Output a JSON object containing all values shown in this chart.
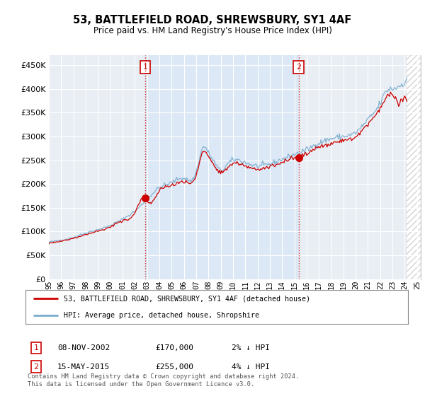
{
  "title": "53, BATTLEFIELD ROAD, SHREWSBURY, SY1 4AF",
  "subtitle": "Price paid vs. HM Land Registry's House Price Index (HPI)",
  "ylim": [
    0,
    470000
  ],
  "xlim_start": 1995.0,
  "xlim_end": 2025.3,
  "plot_bg_color_left": "#f0f4f8",
  "plot_bg_color_mid": "#dce8f5",
  "plot_bg_color_right": "#f0f4f8",
  "legend_line1": "53, BATTLEFIELD ROAD, SHREWSBURY, SY1 4AF (detached house)",
  "legend_line2": "HPI: Average price, detached house, Shropshire",
  "sale1_date": "08-NOV-2002",
  "sale1_price": "£170,000",
  "sale1_hpi": "2% ↓ HPI",
  "sale1_year": 2002.85,
  "sale1_value": 170000,
  "sale2_date": "15-MAY-2015",
  "sale2_price": "£255,000",
  "sale2_hpi": "4% ↓ HPI",
  "sale2_year": 2015.37,
  "sale2_value": 255000,
  "red_color": "#cc0000",
  "blue_color": "#7aabcc",
  "hatch_start": 2024.17,
  "footer": "Contains HM Land Registry data © Crown copyright and database right 2024.\nThis data is licensed under the Open Government Licence v3.0."
}
